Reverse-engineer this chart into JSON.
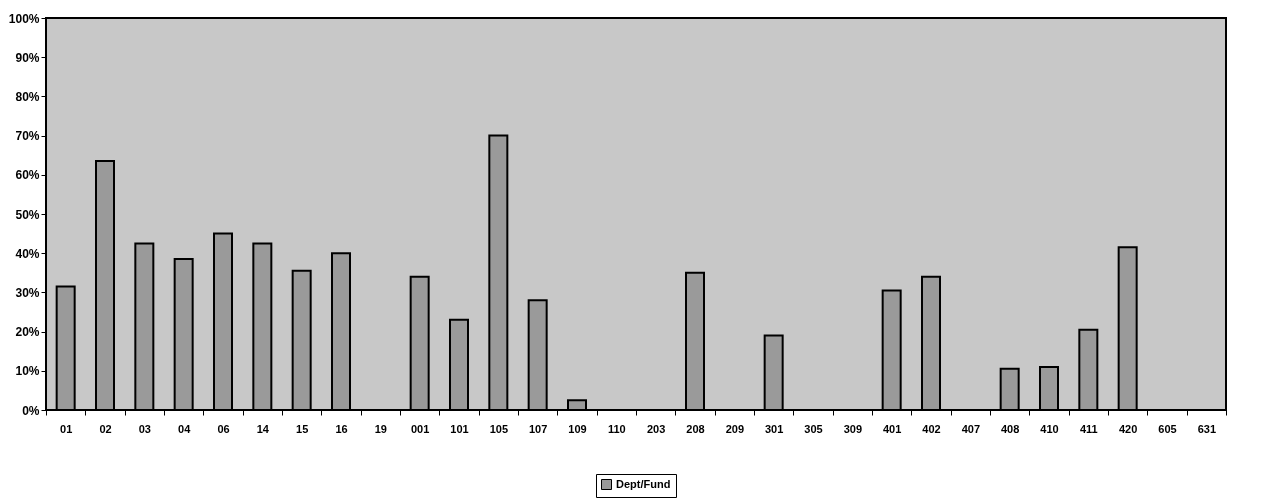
{
  "chart_data": {
    "type": "bar",
    "categories": [
      "01",
      "02",
      "03",
      "04",
      "06",
      "14",
      "15",
      "16",
      "19",
      "001",
      "101",
      "105",
      "107",
      "109",
      "110",
      "203",
      "208",
      "209",
      "301",
      "305",
      "309",
      "401",
      "402",
      "407",
      "408",
      "410",
      "411",
      "420",
      "605",
      "631"
    ],
    "series": [
      {
        "name": "Dept/Fund",
        "color": "#9a9a9a",
        "values": [
          31.5,
          63.5,
          42.5,
          38.5,
          45,
          42.5,
          35.5,
          40,
          0,
          34,
          23,
          70,
          28,
          2.5,
          0,
          0,
          35,
          0,
          19,
          0,
          0,
          30.5,
          34,
          0,
          10.5,
          11,
          20.5,
          41.5,
          0,
          0
        ]
      }
    ],
    "ylim": [
      0,
      100
    ],
    "yticks": [
      {
        "value": 0,
        "label": "0%"
      },
      {
        "value": 10,
        "label": "10%"
      },
      {
        "value": 20,
        "label": "20%"
      },
      {
        "value": 30,
        "label": "30%"
      },
      {
        "value": 40,
        "label": "40%"
      },
      {
        "value": 50,
        "label": "50%"
      },
      {
        "value": 60,
        "label": "60%"
      },
      {
        "value": 70,
        "label": "70%"
      },
      {
        "value": 80,
        "label": "80%"
      },
      {
        "value": 90,
        "label": "90%"
      },
      {
        "value": 100,
        "label": "100%"
      }
    ],
    "legend": "bottom"
  }
}
